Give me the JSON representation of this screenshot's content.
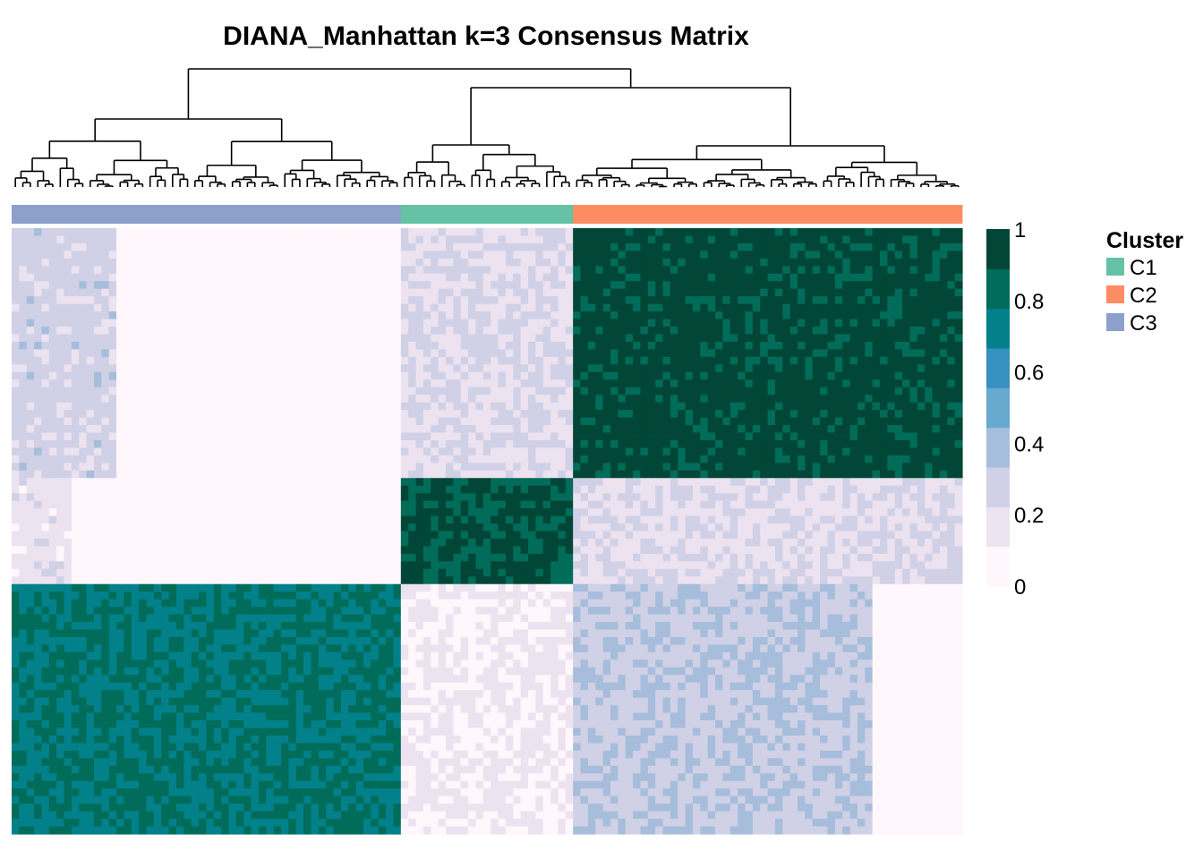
{
  "chart_data": {
    "type": "heatmap",
    "title": "DIANA_Manhattan k=3 Consensus Matrix",
    "value_range": [
      0,
      1
    ],
    "colorbar": {
      "ticks": [
        1,
        0.8,
        0.6,
        0.4,
        0.2,
        0
      ],
      "tick_labels": [
        "1",
        "0.8",
        "0.6",
        "0.4",
        "0.2",
        "0"
      ],
      "colors": [
        "#fff7fb",
        "#ece2f0",
        "#d0d1e6",
        "#a6bddb",
        "#67a9cf",
        "#3690c0",
        "#02818a",
        "#016c59",
        "#014636"
      ]
    },
    "legend": {
      "title": "Cluster",
      "placement": "right",
      "entries": [
        {
          "label": "C1",
          "color": "#66c2a5"
        },
        {
          "label": "C2",
          "color": "#fc8d62"
        },
        {
          "label": "C3",
          "color": "#8da0cb"
        }
      ]
    },
    "column_annotation": [
      {
        "cluster": "C3",
        "count": 52,
        "color": "#8da0cb"
      },
      {
        "cluster": "C1",
        "count": 23,
        "color": "#66c2a5"
      },
      {
        "cluster": "C2",
        "count": 52,
        "color": "#fc8d62"
      }
    ],
    "row_blocks_top_to_bottom": [
      {
        "group": "C2 core",
        "count": 33
      },
      {
        "group": "C1",
        "count": 14
      },
      {
        "group": "C3",
        "count": 33
      }
    ],
    "block_consensus": {
      "C2_vs_C2": 0.93,
      "C1_vs_C1": 0.9,
      "C3_vs_C3": 0.78,
      "C1_vs_C2": 0.22,
      "C3_vs_C2_left": 0.32,
      "C3_vs_C2_right": 0.02,
      "C3_vs_C1": 0.12,
      "C1_vs_C3": 0.02,
      "C2_vs_C3": 0.02
    },
    "dendrogram": "hierarchical clustering of columns, three main branches"
  }
}
